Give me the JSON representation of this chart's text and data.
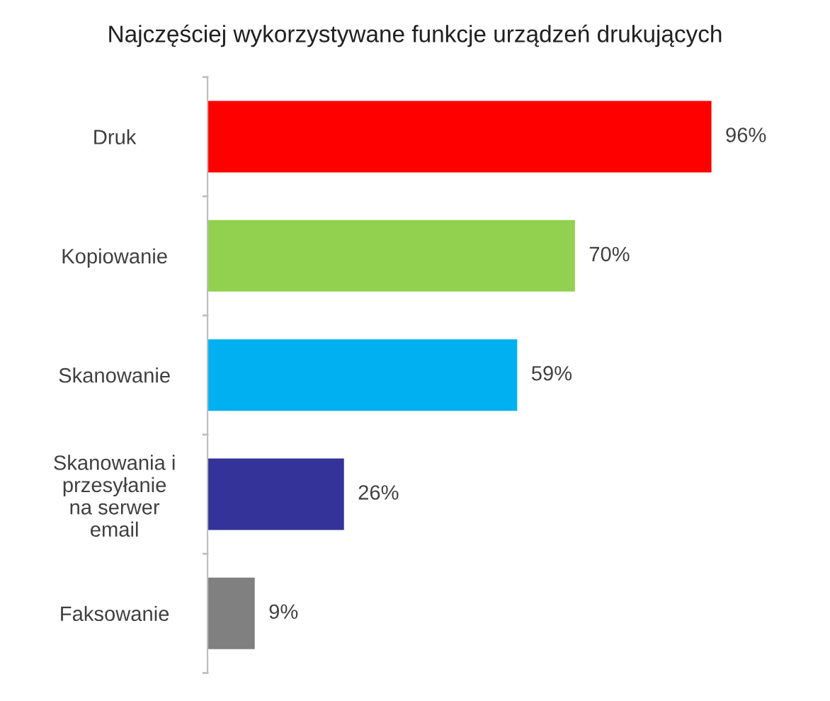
{
  "chart_data": {
    "type": "bar",
    "orientation": "horizontal",
    "title": "Najczęściej wykorzystywane funkcje urządzeń drukujących",
    "categories": [
      "Druk",
      "Kopiowanie",
      "Skanowanie",
      "Skanowania i\nprzesyłanie\nna serwer\nemail",
      "Faksowanie"
    ],
    "values": [
      96,
      70,
      59,
      26,
      9
    ],
    "value_labels": [
      "96%",
      "70%",
      "59%",
      "26%",
      "9%"
    ],
    "colors": [
      "#ff0000",
      "#92d050",
      "#00b0f0",
      "#333399",
      "#808080"
    ]
  }
}
